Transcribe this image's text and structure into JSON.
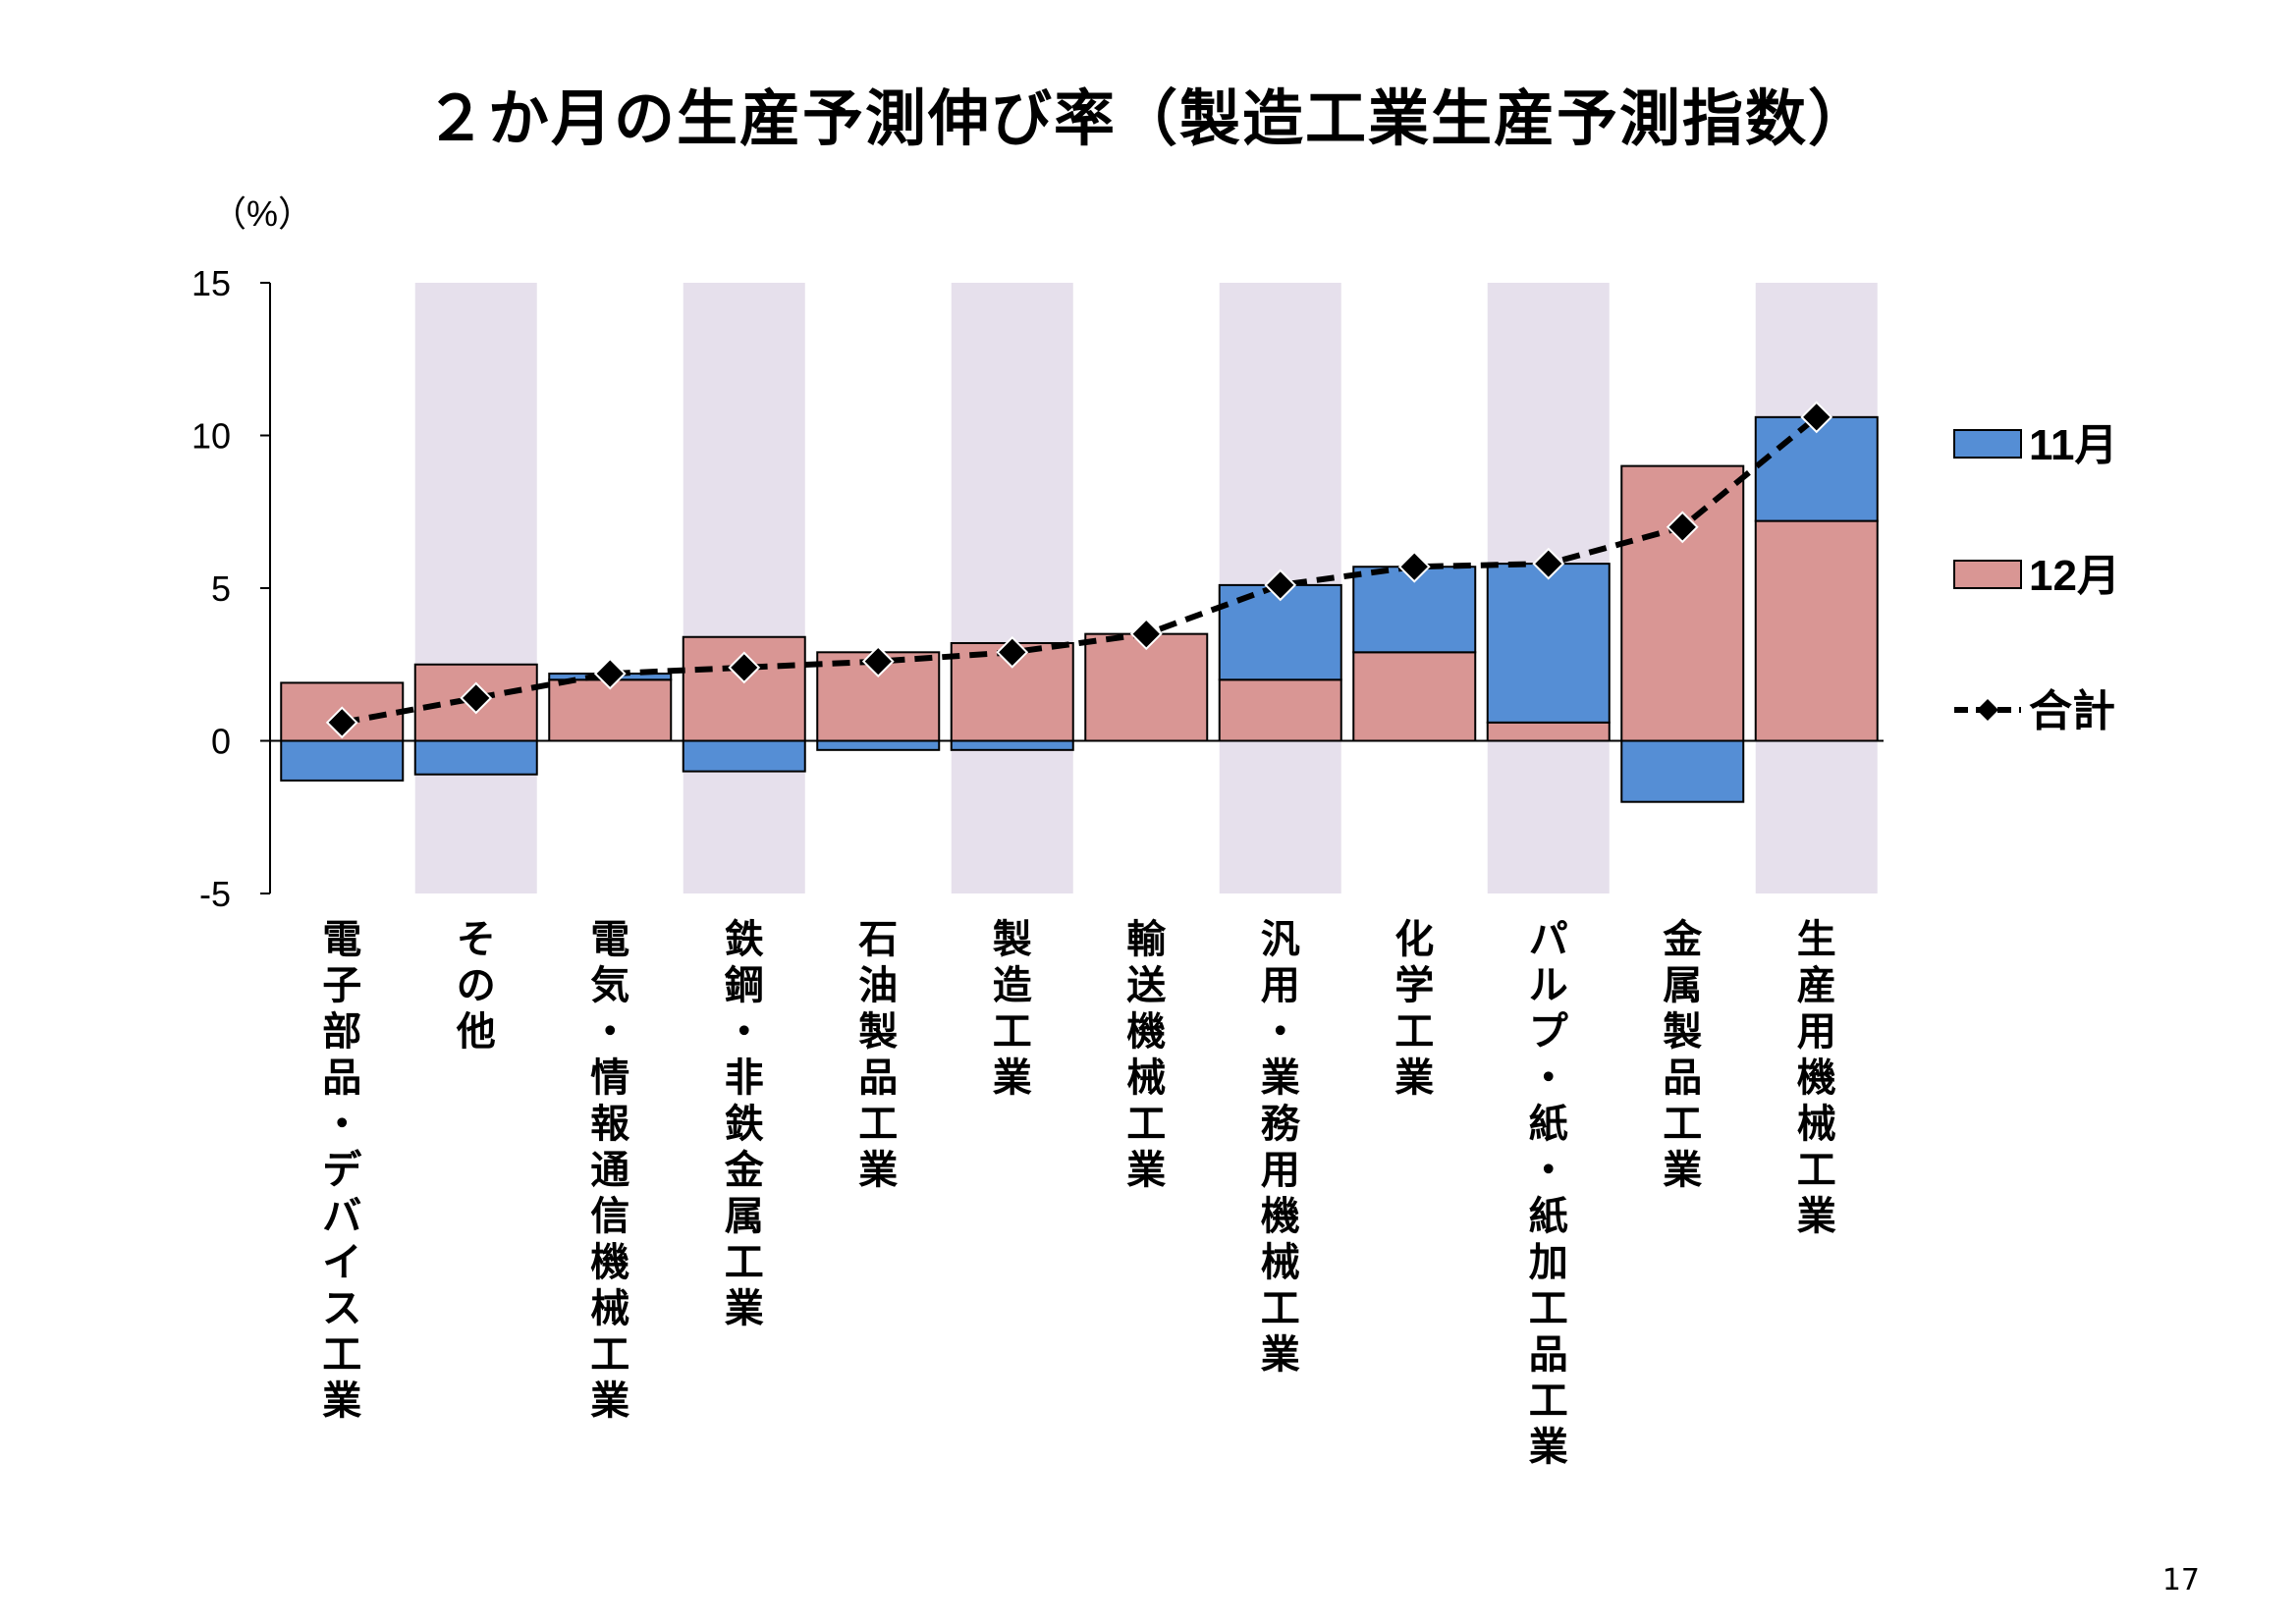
{
  "chart_data": {
    "type": "bar",
    "title": "２か月の生産予測伸び率（製造工業生産予測指数）",
    "ylabel": "（%）",
    "ylim": [
      -5,
      15
    ],
    "yticks": [
      -5,
      0,
      5,
      10,
      15
    ],
    "ytick_labels": [
      "-5",
      "0",
      "5",
      "10",
      "15"
    ],
    "categories": [
      "電子部品・デバイス工業",
      "その他",
      "電気・情報通信機械工業",
      "鉄鋼・非鉄金属工業",
      "石油製品工業",
      "製造工業",
      "輸送機械工業",
      "汎用・業務用機械工業",
      "化学工業",
      "パルプ・紙・紙加工品工業",
      "金属製品工業",
      "生産用機械工業"
    ],
    "series": [
      {
        "name": "12月",
        "kind": "stacked-bar",
        "color": "#d99694",
        "values": [
          1.9,
          2.5,
          2.0,
          3.4,
          2.9,
          3.2,
          3.5,
          2.0,
          2.9,
          0.6,
          9.0,
          7.2
        ]
      },
      {
        "name": "11月",
        "kind": "stacked-bar",
        "color": "#558ed5",
        "values": [
          -1.3,
          -1.1,
          0.2,
          -1.0,
          -0.3,
          -0.3,
          0.0,
          3.1,
          2.8,
          5.2,
          -2.0,
          3.4
        ]
      },
      {
        "name": "合計",
        "kind": "line",
        "color": "#000000",
        "values": [
          0.6,
          1.4,
          2.2,
          2.4,
          2.6,
          2.9,
          3.5,
          5.1,
          5.7,
          5.8,
          7.0,
          10.6
        ]
      }
    ],
    "legend_position": "right",
    "alternate_band_color": "#e6e0ec",
    "grid": false
  },
  "page_number": "17"
}
